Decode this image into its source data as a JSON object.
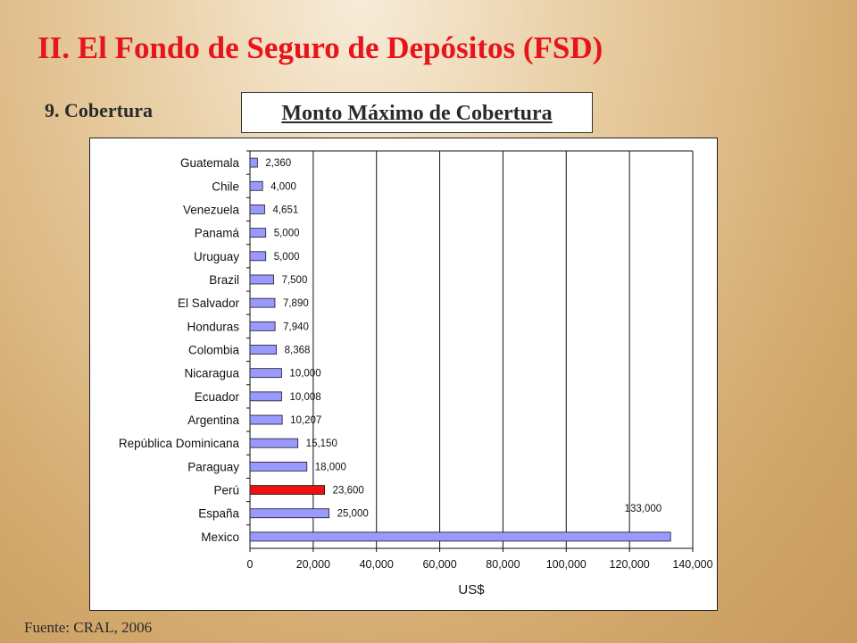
{
  "slide": {
    "title": "II. El Fondo de Seguro de Depósitos (FSD)",
    "section": "9. Cobertura",
    "source": "Fuente: CRAL, 2006"
  },
  "chart_data": {
    "type": "bar",
    "orientation": "horizontal",
    "title": "Monto Máximo de Cobertura",
    "xlabel": "US$",
    "ylabel": "",
    "xlim": [
      0,
      140000
    ],
    "xticks": [
      0,
      20000,
      40000,
      60000,
      80000,
      100000,
      120000,
      140000
    ],
    "xtick_labels": [
      "0",
      "20,000",
      "40,000",
      "60,000",
      "80,000",
      "100,000",
      "120,000",
      "140,000"
    ],
    "grid": "vertical",
    "categories": [
      "Guatemala",
      "Chile",
      "Venezuela",
      "Panamá",
      "Uruguay",
      "Brazil",
      "El Salvador",
      "Honduras",
      "Colombia",
      "Nicaragua",
      "Ecuador",
      "Argentina",
      "República Dominicana",
      "Paraguay",
      "Perú",
      "España",
      "Mexico"
    ],
    "values": [
      2360,
      4000,
      4651,
      5000,
      5000,
      7500,
      7890,
      7940,
      8368,
      10000,
      10008,
      10207,
      15150,
      18000,
      23600,
      25000,
      133000
    ],
    "data_labels": [
      "2,360",
      "4,000",
      "4,651",
      "5,000",
      "5,000",
      "7,500",
      "7,890",
      "7,940",
      "8,368",
      "10,000",
      "10,008",
      "10,207",
      "15,150",
      "18,000",
      "23,600",
      "25,000",
      "133,000"
    ],
    "highlight_category": "Perú",
    "colors": {
      "bar": "#9999ff",
      "highlight": "#ee1111",
      "bar_outline": "#1a1a1a",
      "grid": "#111111"
    }
  }
}
